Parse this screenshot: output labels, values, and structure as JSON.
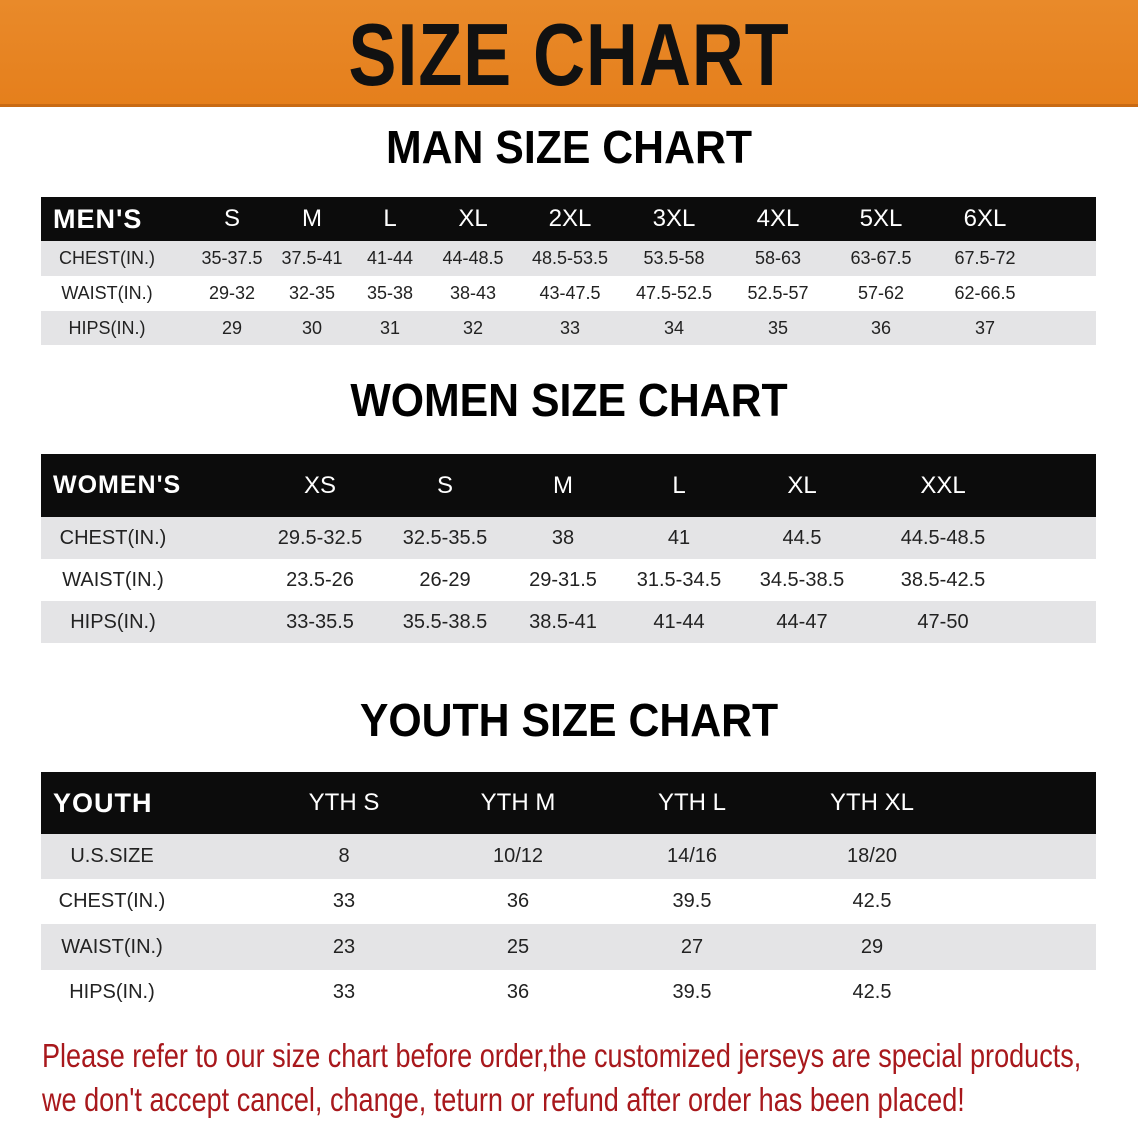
{
  "banner_title": "SIZE CHART",
  "colors": {
    "banner": "#e8841f",
    "header_bg": "#0c0c0c",
    "row_gray": "#e4e4e6",
    "note": "#a8181c"
  },
  "men": {
    "title": "MAN SIZE CHART",
    "header": [
      "MEN'S",
      "S",
      "M",
      "L",
      "XL",
      "2XL",
      "3XL",
      "4XL",
      "5XL",
      "6XL"
    ],
    "rows": [
      [
        "CHEST(IN.)",
        "35-37.5",
        "37.5-41",
        "41-44",
        "44-48.5",
        "48.5-53.5",
        "53.5-58",
        "58-63",
        "63-67.5",
        "67.5-72"
      ],
      [
        "WAIST(IN.)",
        "29-32",
        "32-35",
        "35-38",
        "38-43",
        "43-47.5",
        "47.5-52.5",
        "52.5-57",
        "57-62",
        "62-66.5"
      ],
      [
        "HIPS(IN.)",
        "29",
        "30",
        "31",
        "32",
        "33",
        "34",
        "35",
        "36",
        "37"
      ]
    ]
  },
  "women": {
    "title": "WOMEN SIZE CHART",
    "header": [
      "WOMEN'S",
      "XS",
      "S",
      "M",
      "L",
      "XL",
      "XXL"
    ],
    "rows": [
      [
        "CHEST(IN.)",
        "29.5-32.5",
        "32.5-35.5",
        "38",
        "41",
        "44.5",
        "44.5-48.5"
      ],
      [
        "WAIST(IN.)",
        "23.5-26",
        "26-29",
        "29-31.5",
        "31.5-34.5",
        "34.5-38.5",
        "38.5-42.5"
      ],
      [
        "HIPS(IN.)",
        "33-35.5",
        "35.5-38.5",
        "38.5-41",
        "41-44",
        "44-47",
        "47-50"
      ]
    ]
  },
  "youth": {
    "title": "YOUTH SIZE CHART",
    "header": [
      "YOUTH",
      "YTH S",
      "YTH M",
      "YTH L",
      "YTH XL"
    ],
    "rows": [
      [
        "U.S.SIZE",
        "8",
        "10/12",
        "14/16",
        "18/20"
      ],
      [
        "CHEST(IN.)",
        "33",
        "36",
        "39.5",
        "42.5"
      ],
      [
        "WAIST(IN.)",
        "23",
        "25",
        "27",
        "29"
      ],
      [
        "HIPS(IN.)",
        "33",
        "36",
        "39.5",
        "42.5"
      ]
    ]
  },
  "note": {
    "line1": "Please refer to our size chart before order,the customized jerseys are special products,",
    "line2": "we don't accept cancel, change, teturn or refund after order has been placed!"
  }
}
